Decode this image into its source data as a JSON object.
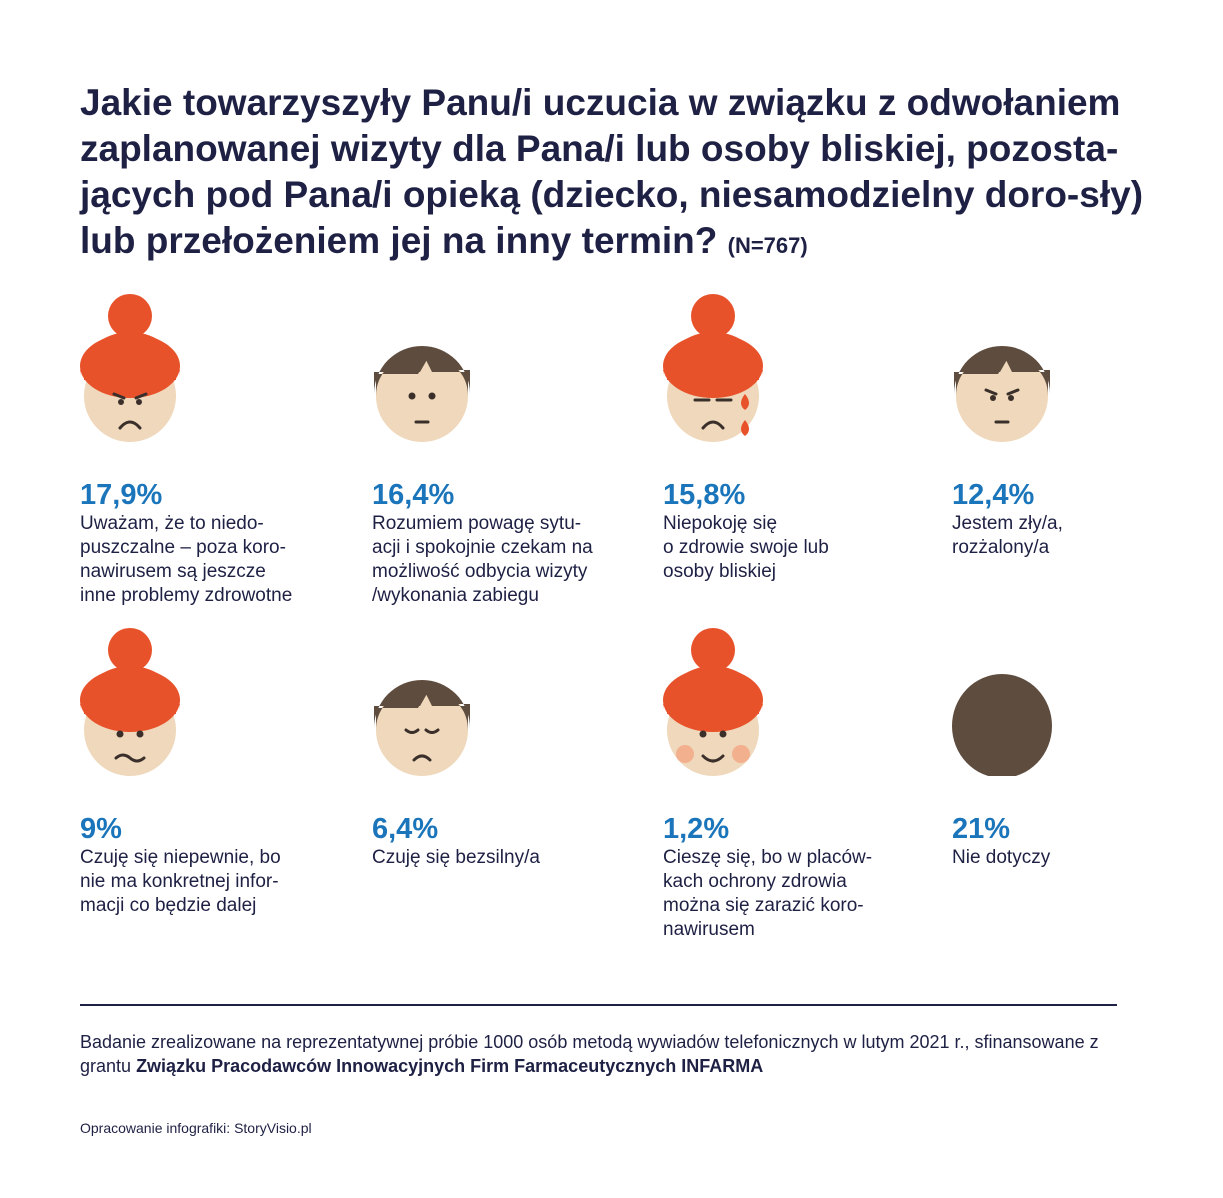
{
  "title": {
    "text": "Jakie towarzyszyły Panu/i uczucia w związku z odwołaniem zaplanowanej wizyty dla Pana/i lub osoby bliskiej, pozosta-jących pod Pana/i opieką (dziecko, niesamodzielny doro-sły) lub przełożeniem jej na inny termin?",
    "sample": "(N=767)"
  },
  "chart_data": {
    "type": "table",
    "categories": [
      "Uważam, że to niedo-puszczalne – poza koro-nawirusem są jeszcze inne problemy zdrowotne",
      "Rozumiem powagę sytu-acji i spokojnie czekam na możliwość odbycia wizyty /wykonania zabiegu",
      "Niepokoję się o zdrowie swoje lub osoby bliskiej",
      "Jestem zły/a, rozżalony/a",
      "Czuję się niepewnie, bo nie ma konkretnej infor-macji co będzie dalej",
      "Czuję się bezsilny/a",
      "Cieszę się, bo w placów-kach ochrony zdrowia można się zarazić koro-nawirusem",
      "Nie dotyczy"
    ],
    "values": [
      17.9,
      16.4,
      15.8,
      12.4,
      9,
      6.4,
      1.2,
      21
    ],
    "unit": "%"
  },
  "items": [
    {
      "pct": "17,9%",
      "lines": [
        "Uważam, że to niedo-",
        "puszczalne – poza koro-",
        "nawirusem są jeszcze",
        "inne problemy zdrowotne"
      ],
      "icon": "woman-angry-icon"
    },
    {
      "pct": "16,4%",
      "lines": [
        "Rozumiem powagę sytu-",
        "acji i spokojnie czekam na",
        "możliwość odbycia wizyty",
        "/wykonania zabiegu"
      ],
      "icon": "man-neutral-icon"
    },
    {
      "pct": "15,8%",
      "lines": [
        "Niepokoję się",
        "o zdrowie swoje lub",
        "osoby bliskiej"
      ],
      "icon": "woman-crying-icon"
    },
    {
      "pct": "12,4%",
      "lines": [
        "Jestem zły/a,",
        "rozżalony/a"
      ],
      "icon": "man-angry-icon"
    },
    {
      "pct": "9%",
      "lines": [
        "Czuję się niepewnie, bo",
        "nie ma konkretnej infor-",
        "macji co będzie dalej"
      ],
      "icon": "woman-uncertain-icon"
    },
    {
      "pct": "6,4%",
      "lines": [
        "Czuję się bezsilny/a"
      ],
      "icon": "man-sad-icon"
    },
    {
      "pct": "1,2%",
      "lines": [
        "Cieszę się, bo w placów-",
        "kach ochrony zdrowia",
        "można się zarazić koro-",
        "nawirusem"
      ],
      "icon": "woman-happy-icon"
    },
    {
      "pct": "21%",
      "lines": [
        "Nie dotyczy"
      ],
      "icon": "head-back-icon"
    }
  ],
  "colors": {
    "accent": "#1b75bb",
    "text": "#1e2044",
    "woman_hair": "#e8522a",
    "man_hair": "#5e4c3f",
    "skin": "#efd8bb",
    "blush": "#f2b08e"
  },
  "footer": {
    "source_prefix": "Badanie zrealizowane na reprezentatywnej próbie 1000 osób metodą wywiadów telefonicznych w lutym 2021 r., sfinansowane z grantu",
    "source_bold": "Związku Pracodawców Innowacyjnych Firm Farmaceutycznych INFARMA",
    "credit": "Opracowanie infografiki: StoryVisio.pl"
  }
}
